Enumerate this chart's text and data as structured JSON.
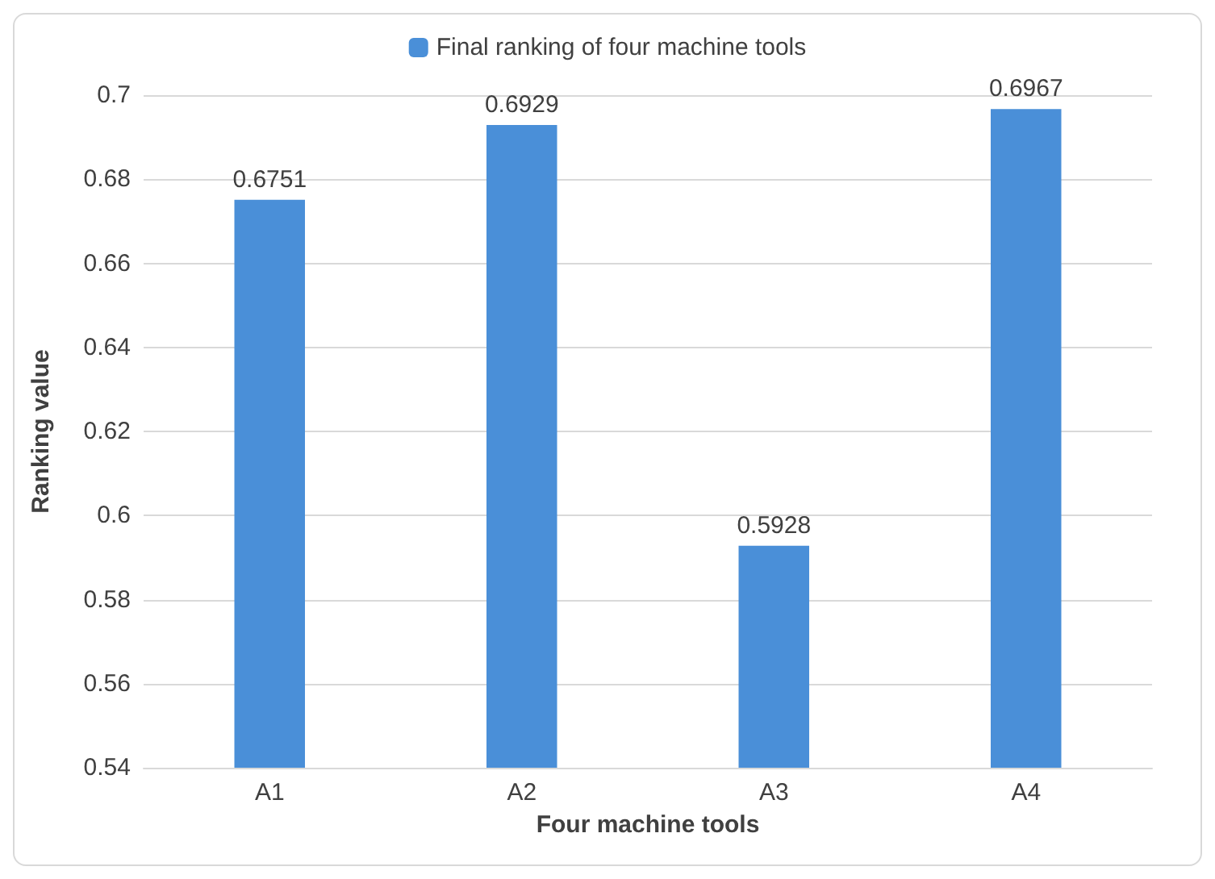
{
  "chart_data": {
    "type": "bar",
    "xlabel": "Four machine tools",
    "ylabel": "Ranking value",
    "categories": [
      "A1",
      "A2",
      "A3",
      "A4"
    ],
    "series": [
      {
        "name": "Final ranking of four machine tools",
        "color": "#4a8fd8",
        "values": [
          0.6751,
          0.6929,
          0.5928,
          0.6967
        ]
      }
    ],
    "ylim": [
      0.54,
      0.7
    ],
    "yticks": [
      0.54,
      0.56,
      0.58,
      0.6,
      0.62,
      0.64,
      0.66,
      0.68,
      0.7
    ],
    "grid": "y",
    "legend": "top",
    "data_labels": true
  }
}
